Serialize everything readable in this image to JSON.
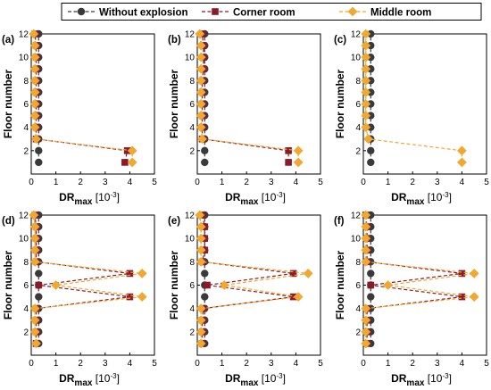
{
  "chart_data": {
    "type": "line",
    "legend": {
      "placement": "top",
      "entries": [
        {
          "name": "Without explosion",
          "color": "#3a3a3a",
          "marker": "circle"
        },
        {
          "name": "Corner room",
          "color": "#8b1a2b",
          "marker": "square"
        },
        {
          "name": "Middle room",
          "color": "#f0a830",
          "marker": "diamond"
        }
      ]
    },
    "axes": {
      "xlabel_main": "DR",
      "xlabel_sub": "max",
      "xlabel_unit": "[10",
      "xlabel_exp": "-3",
      "xlabel_close": "]",
      "ylabel": "Floor number",
      "xlim": [
        0,
        5
      ],
      "ylim": [
        0,
        12
      ],
      "xticks": [
        "0",
        "1",
        "2",
        "3",
        "4",
        "5"
      ],
      "yticks": [
        "2",
        "4",
        "6",
        "8",
        "10",
        "12"
      ]
    },
    "panels": [
      {
        "label": "(a)",
        "series": [
          {
            "name": "Without explosion",
            "x": [
              0.3,
              0.3,
              0.3,
              0.3,
              0.3,
              0.3,
              0.3,
              0.3,
              0.3,
              0.3,
              0.3,
              0.3
            ],
            "y": [
              1,
              2,
              3,
              4,
              5,
              6,
              7,
              8,
              9,
              10,
              11,
              12
            ]
          },
          {
            "name": "Corner room",
            "x": [
              3.8,
              3.9,
              0.2,
              0.2,
              0.2,
              0.2,
              0.2,
              0.2,
              0.2,
              0.2,
              0.2,
              0.15
            ],
            "y": [
              1,
              2,
              3,
              4,
              5,
              6,
              7,
              8,
              9,
              10,
              11,
              12
            ]
          },
          {
            "name": "Middle room",
            "x": [
              4.1,
              4.1,
              0.2,
              0.15,
              0.15,
              0.15,
              0.15,
              0.15,
              0.15,
              0.15,
              0.15,
              0.1
            ],
            "y": [
              1,
              2,
              3,
              4,
              5,
              6,
              7,
              8,
              9,
              10,
              11,
              12
            ]
          }
        ]
      },
      {
        "label": "(b)",
        "series": [
          {
            "name": "Without explosion",
            "x": [
              0.3,
              0.3,
              0.3,
              0.3,
              0.3,
              0.3,
              0.3,
              0.3,
              0.3,
              0.3,
              0.3,
              0.3
            ],
            "y": [
              1,
              2,
              3,
              4,
              5,
              6,
              7,
              8,
              9,
              10,
              11,
              12
            ]
          },
          {
            "name": "Corner room",
            "x": [
              3.7,
              3.7,
              0.2,
              0.2,
              0.2,
              0.2,
              0.2,
              0.2,
              0.25,
              0.25,
              0.25,
              0.2
            ],
            "y": [
              1,
              2,
              3,
              4,
              5,
              6,
              7,
              8,
              9,
              10,
              11,
              12
            ]
          },
          {
            "name": "Middle room",
            "x": [
              4.1,
              4.1,
              0.2,
              0.15,
              0.15,
              0.15,
              0.15,
              0.15,
              0.15,
              0.15,
              0.15,
              0.1
            ],
            "y": [
              1,
              2,
              3,
              4,
              5,
              6,
              7,
              8,
              9,
              10,
              11,
              12
            ]
          }
        ]
      },
      {
        "label": "(c)",
        "series": [
          {
            "name": "Without explosion",
            "x": [
              0.3,
              0.3,
              0.3,
              0.3,
              0.3,
              0.3,
              0.3,
              0.3,
              0.3,
              0.3,
              0.3,
              0.3
            ],
            "y": [
              1,
              2,
              3,
              4,
              5,
              6,
              7,
              8,
              9,
              10,
              11,
              12
            ]
          },
          {
            "name": "Middle room",
            "x": [
              4.0,
              4.0,
              0.2,
              0.1,
              0.1,
              0.1,
              0.1,
              0.1,
              0.1,
              0.1,
              0.1,
              0.1
            ],
            "y": [
              1,
              2,
              3,
              4,
              5,
              6,
              7,
              8,
              9,
              10,
              11,
              12
            ]
          }
        ]
      },
      {
        "label": "(d)",
        "series": [
          {
            "name": "Without explosion",
            "x": [
              0.3,
              0.3,
              0.3,
              0.3,
              0.3,
              0.3,
              0.3,
              0.3,
              0.3,
              0.3,
              0.3,
              0.3
            ],
            "y": [
              1,
              2,
              3,
              4,
              5,
              6,
              7,
              8,
              9,
              10,
              11,
              12
            ]
          },
          {
            "name": "Corner room",
            "x": [
              0.2,
              0.2,
              0.2,
              0.2,
              4.0,
              0.3,
              4.0,
              0.2,
              0.2,
              0.2,
              0.2,
              0.15
            ],
            "y": [
              1,
              2,
              3,
              4,
              5,
              6,
              7,
              8,
              9,
              10,
              11,
              12
            ]
          },
          {
            "name": "Middle room",
            "x": [
              0.2,
              0.15,
              0.15,
              0.15,
              4.5,
              1.0,
              4.5,
              0.15,
              0.15,
              0.15,
              0.15,
              0.1
            ],
            "y": [
              1,
              2,
              3,
              4,
              5,
              6,
              7,
              8,
              9,
              10,
              11,
              12
            ]
          }
        ]
      },
      {
        "label": "(e)",
        "series": [
          {
            "name": "Without explosion",
            "x": [
              0.3,
              0.3,
              0.3,
              0.3,
              0.3,
              0.3,
              0.3,
              0.3,
              0.3,
              0.3,
              0.3,
              0.3
            ],
            "y": [
              1,
              2,
              3,
              4,
              5,
              6,
              7,
              8,
              9,
              10,
              11,
              12
            ]
          },
          {
            "name": "Corner room",
            "x": [
              0.2,
              0.2,
              0.2,
              0.25,
              3.9,
              0.4,
              3.9,
              0.2,
              0.3,
              0.3,
              0.3,
              0.2
            ],
            "y": [
              1,
              2,
              3,
              4,
              5,
              6,
              7,
              8,
              9,
              10,
              11,
              12
            ]
          },
          {
            "name": "Middle room",
            "x": [
              0.15,
              0.15,
              0.15,
              0.15,
              4.1,
              1.1,
              4.5,
              0.15,
              0.15,
              0.15,
              0.15,
              0.1
            ],
            "y": [
              1,
              2,
              3,
              4,
              5,
              6,
              7,
              8,
              9,
              10,
              11,
              12
            ]
          }
        ]
      },
      {
        "label": "(f)",
        "series": [
          {
            "name": "Without explosion",
            "x": [
              0.3,
              0.3,
              0.3,
              0.3,
              0.3,
              0.3,
              0.3,
              0.3,
              0.3,
              0.3,
              0.3,
              0.3
            ],
            "y": [
              1,
              2,
              3,
              4,
              5,
              6,
              7,
              8,
              9,
              10,
              11,
              12
            ]
          },
          {
            "name": "Corner room",
            "x": [
              0.15,
              0.15,
              0.15,
              0.15,
              4.0,
              0.3,
              4.0,
              0.15,
              0.15,
              0.15,
              0.15,
              0.1
            ],
            "y": [
              1,
              2,
              3,
              4,
              5,
              6,
              7,
              8,
              9,
              10,
              11,
              12
            ]
          },
          {
            "name": "Middle room",
            "x": [
              0.1,
              0.1,
              0.1,
              0.1,
              4.5,
              1.0,
              4.5,
              0.1,
              0.1,
              0.1,
              0.1,
              0.1
            ],
            "y": [
              1,
              2,
              3,
              4,
              5,
              6,
              7,
              8,
              9,
              10,
              11,
              12
            ]
          }
        ]
      }
    ]
  }
}
